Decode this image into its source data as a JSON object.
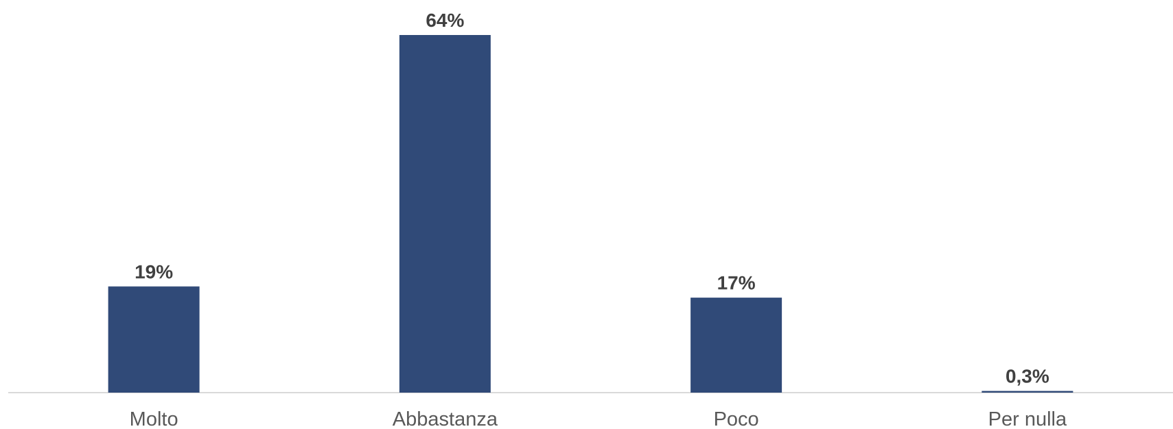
{
  "chart_data": {
    "type": "bar",
    "title": "",
    "xlabel": "",
    "ylabel": "",
    "categories": [
      "Molto",
      "Abbastanza",
      "Poco",
      "Per nulla"
    ],
    "values": [
      19,
      64,
      17,
      0.3
    ],
    "value_labels": [
      "19%",
      "64%",
      "17%",
      "0,3%"
    ],
    "ylim": [
      0,
      64
    ],
    "grid": false,
    "legend": "none",
    "bar_color": "#304a78",
    "axis_color": "#d9d9d9"
  }
}
